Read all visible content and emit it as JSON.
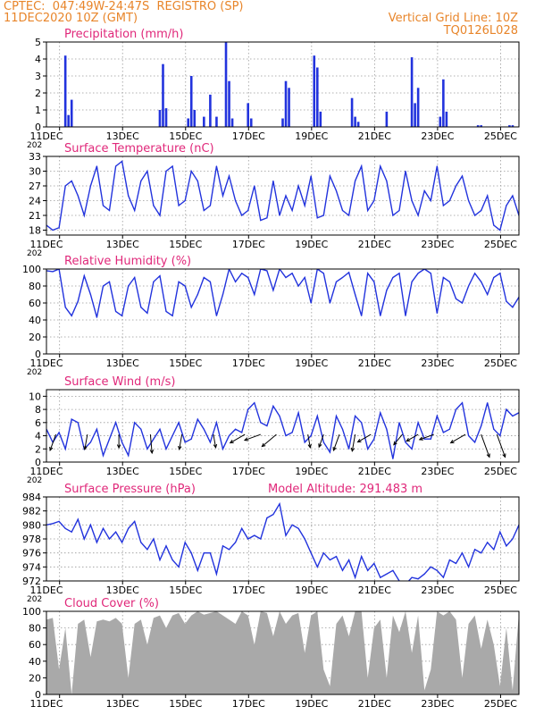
{
  "header": {
    "line1": "CPTEC:  047:49W-24:47S  REGISTRO (SP)",
    "line2": "11DEC2020 10Z (GMT)",
    "grid_note": "Vertical Grid Line: 10Z",
    "run_id": "TQ0126L028"
  },
  "colors": {
    "header": "#e8852a",
    "title": "#e0287a",
    "series": "#2233dd",
    "cloud": "#a9a9a9",
    "wind_arrow": "#000000"
  },
  "x_axis": {
    "unit": "day of December 2020",
    "domain": [
      11.0,
      26.0
    ],
    "tick_values": [
      11,
      13,
      15,
      17,
      19,
      21,
      23,
      25
    ],
    "tick_labels": [
      "11DEC",
      "13DEC",
      "15DEC",
      "17DEC",
      "19DEC",
      "21DEC",
      "23DEC",
      "25DEC"
    ],
    "fragment": "202"
  },
  "chart_data": [
    {
      "type": "bar",
      "title": "Precipitation (mm/h)",
      "ylim": [
        0,
        5
      ],
      "yticks": [
        0,
        1,
        2,
        3,
        4,
        5
      ],
      "x": [
        11.6,
        11.7,
        11.8,
        14.6,
        14.7,
        14.8,
        15.5,
        15.6,
        15.7,
        16.0,
        16.2,
        16.4,
        16.7,
        16.8,
        16.9,
        17.4,
        17.5,
        18.5,
        18.6,
        18.7,
        19.5,
        19.6,
        19.7,
        20.7,
        20.8,
        20.9,
        21.8,
        22.6,
        22.7,
        22.8,
        23.5,
        23.6,
        23.7,
        24.7,
        24.8,
        25.7,
        25.8
      ],
      "values": [
        4.2,
        0.7,
        1.6,
        1.0,
        3.7,
        1.1,
        0.5,
        3.0,
        1.0,
        0.6,
        1.9,
        0.6,
        5.0,
        2.7,
        0.5,
        1.4,
        0.5,
        0.5,
        2.7,
        2.3,
        4.2,
        3.5,
        0.9,
        1.7,
        0.6,
        0.3,
        0.9,
        4.1,
        1.4,
        2.3,
        0.6,
        2.8,
        0.9,
        0.1,
        0.1,
        0.1,
        0.1
      ]
    },
    {
      "type": "line",
      "title": "Surface Temperature (nC)",
      "ylim": [
        17,
        33
      ],
      "yticks": [
        18,
        21,
        24,
        27,
        30,
        33
      ],
      "x": [
        11.0,
        11.2,
        11.4,
        11.6,
        11.8,
        12.0,
        12.2,
        12.4,
        12.6,
        12.8,
        13.0,
        13.2,
        13.4,
        13.6,
        13.8,
        14.0,
        14.2,
        14.4,
        14.6,
        14.8,
        15.0,
        15.2,
        15.4,
        15.6,
        15.8,
        16.0,
        16.2,
        16.4,
        16.6,
        16.8,
        17.0,
        17.2,
        17.4,
        17.6,
        17.8,
        18.0,
        18.2,
        18.4,
        18.6,
        18.8,
        19.0,
        19.2,
        19.4,
        19.6,
        19.8,
        20.0,
        20.2,
        20.4,
        20.6,
        20.8,
        21.0,
        21.2,
        21.4,
        21.6,
        21.8,
        22.0,
        22.2,
        22.4,
        22.6,
        22.8,
        23.0,
        23.2,
        23.4,
        23.6,
        23.8,
        24.0,
        24.2,
        24.4,
        24.6,
        24.8,
        25.0,
        25.2,
        25.4,
        25.6,
        25.8,
        26.0
      ],
      "values": [
        19,
        18,
        18.5,
        27,
        28,
        25,
        21,
        27,
        31,
        23,
        22,
        31,
        32,
        25,
        22,
        28,
        30,
        23,
        21,
        30,
        31,
        23,
        24,
        30,
        28,
        22,
        23,
        31,
        25,
        29,
        24,
        21,
        22,
        27,
        20,
        20.5,
        28,
        21,
        25,
        22,
        27,
        23,
        29,
        20.5,
        21,
        29,
        26,
        22,
        21,
        28,
        31,
        22,
        24,
        31,
        28,
        21,
        22,
        30,
        24,
        21,
        26,
        24,
        31,
        23,
        24,
        27,
        29,
        24,
        21,
        22,
        25,
        19,
        18,
        23,
        25,
        21
      ]
    },
    {
      "type": "line",
      "title": "Relative Humidity (%)",
      "ylim": [
        0,
        100
      ],
      "yticks": [
        0,
        20,
        40,
        60,
        80,
        100
      ],
      "x": [
        11.0,
        11.2,
        11.4,
        11.6,
        11.8,
        12.0,
        12.2,
        12.4,
        12.6,
        12.8,
        13.0,
        13.2,
        13.4,
        13.6,
        13.8,
        14.0,
        14.2,
        14.4,
        14.6,
        14.8,
        15.0,
        15.2,
        15.4,
        15.6,
        15.8,
        16.0,
        16.2,
        16.4,
        16.6,
        16.8,
        17.0,
        17.2,
        17.4,
        17.6,
        17.8,
        18.0,
        18.2,
        18.4,
        18.6,
        18.8,
        19.0,
        19.2,
        19.4,
        19.6,
        19.8,
        20.0,
        20.2,
        20.4,
        20.6,
        20.8,
        21.0,
        21.2,
        21.4,
        21.6,
        21.8,
        22.0,
        22.2,
        22.4,
        22.6,
        22.8,
        23.0,
        23.2,
        23.4,
        23.6,
        23.8,
        24.0,
        24.2,
        24.4,
        24.6,
        24.8,
        25.0,
        25.2,
        25.4,
        25.6,
        25.8,
        26.0
      ],
      "values": [
        98,
        97,
        100,
        55,
        45,
        62,
        92,
        70,
        43,
        80,
        85,
        50,
        45,
        80,
        90,
        55,
        48,
        85,
        92,
        50,
        45,
        85,
        80,
        55,
        70,
        90,
        85,
        45,
        70,
        100,
        85,
        95,
        90,
        70,
        100,
        98,
        75,
        100,
        90,
        95,
        80,
        90,
        60,
        100,
        95,
        60,
        85,
        90,
        96,
        70,
        45,
        95,
        85,
        45,
        75,
        90,
        95,
        45,
        85,
        95,
        100,
        95,
        48,
        90,
        85,
        65,
        60,
        80,
        95,
        85,
        70,
        90,
        95,
        62,
        55,
        67
      ]
    },
    {
      "type": "line",
      "title": "Surface Wind (m/s)",
      "ylim": [
        0,
        11
      ],
      "yticks": [
        0,
        2,
        4,
        6,
        8,
        10
      ],
      "x": [
        11.0,
        11.2,
        11.4,
        11.6,
        11.8,
        12.0,
        12.2,
        12.4,
        12.6,
        12.8,
        13.0,
        13.2,
        13.4,
        13.6,
        13.8,
        14.0,
        14.2,
        14.4,
        14.6,
        14.8,
        15.0,
        15.2,
        15.4,
        15.6,
        15.8,
        16.0,
        16.2,
        16.4,
        16.6,
        16.8,
        17.0,
        17.2,
        17.4,
        17.6,
        17.8,
        18.0,
        18.2,
        18.4,
        18.6,
        18.8,
        19.0,
        19.2,
        19.4,
        19.6,
        19.8,
        20.0,
        20.2,
        20.4,
        20.6,
        20.8,
        21.0,
        21.2,
        21.4,
        21.6,
        21.8,
        22.0,
        22.2,
        22.4,
        22.6,
        22.8,
        23.0,
        23.2,
        23.4,
        23.6,
        23.8,
        24.0,
        24.2,
        24.4,
        24.6,
        24.8,
        25.0,
        25.2,
        25.4,
        25.6,
        25.8,
        26.0
      ],
      "values": [
        5,
        3,
        4.5,
        2,
        6.5,
        6,
        2,
        3,
        5,
        1,
        3.5,
        6,
        3,
        1,
        6,
        5,
        2,
        3.5,
        5,
        2,
        4,
        6,
        3,
        3.5,
        6.5,
        5,
        3,
        6,
        2,
        4,
        5,
        4.5,
        8,
        9,
        6,
        5.5,
        8.5,
        7,
        4,
        4.5,
        7.5,
        3,
        4,
        7,
        3,
        1.5,
        7,
        5,
        2,
        7,
        6,
        2,
        3.5,
        7.5,
        5,
        0.5,
        6,
        3,
        2,
        6,
        3.5,
        3.5,
        7,
        4.5,
        5,
        8,
        9,
        4,
        3,
        5.5,
        9,
        5,
        4,
        8,
        7,
        7.5
      ],
      "arrows": [
        {
          "x": 11.3,
          "speed": 3,
          "dir_deg": 200
        },
        {
          "x": 12.3,
          "speed": 2.5,
          "dir_deg": 190
        },
        {
          "x": 13.3,
          "speed": 2,
          "dir_deg": 180
        },
        {
          "x": 14.3,
          "speed": 3.5,
          "dir_deg": 175
        },
        {
          "x": 15.3,
          "speed": 2.5,
          "dir_deg": 190
        },
        {
          "x": 16.3,
          "speed": 2,
          "dir_deg": 170
        },
        {
          "x": 17.3,
          "speed": 3,
          "dir_deg": 240
        },
        {
          "x": 17.8,
          "speed": 3,
          "dir_deg": 250
        },
        {
          "x": 18.3,
          "speed": 3.5,
          "dir_deg": 230
        },
        {
          "x": 19.3,
          "speed": 2,
          "dir_deg": 170
        },
        {
          "x": 19.8,
          "speed": 2,
          "dir_deg": 200
        },
        {
          "x": 20.3,
          "speed": 3,
          "dir_deg": 200
        },
        {
          "x": 20.8,
          "speed": 3,
          "dir_deg": 190
        },
        {
          "x": 21.3,
          "speed": 2.5,
          "dir_deg": 240
        },
        {
          "x": 22.3,
          "speed": 2,
          "dir_deg": 220
        },
        {
          "x": 22.8,
          "speed": 2,
          "dir_deg": 240
        },
        {
          "x": 23.3,
          "speed": 2.5,
          "dir_deg": 250
        },
        {
          "x": 24.3,
          "speed": 3,
          "dir_deg": 240
        },
        {
          "x": 24.8,
          "speed": 5,
          "dir_deg": 160
        },
        {
          "x": 25.3,
          "speed": 5,
          "dir_deg": 160
        }
      ]
    },
    {
      "type": "line",
      "title": "Surface Pressure (hPa)",
      "annotation": "Model Altitude: 291.483  m",
      "ylim": [
        972,
        984
      ],
      "yticks": [
        972,
        974,
        976,
        978,
        980,
        982,
        984
      ],
      "x": [
        11.0,
        11.2,
        11.4,
        11.6,
        11.8,
        12.0,
        12.2,
        12.4,
        12.6,
        12.8,
        13.0,
        13.2,
        13.4,
        13.6,
        13.8,
        14.0,
        14.2,
        14.4,
        14.6,
        14.8,
        15.0,
        15.2,
        15.4,
        15.6,
        15.8,
        16.0,
        16.2,
        16.4,
        16.6,
        16.8,
        17.0,
        17.2,
        17.4,
        17.6,
        17.8,
        18.0,
        18.2,
        18.4,
        18.6,
        18.8,
        19.0,
        19.2,
        19.4,
        19.6,
        19.8,
        20.0,
        20.2,
        20.4,
        20.6,
        20.8,
        21.0,
        21.2,
        21.4,
        21.6,
        21.8,
        22.0,
        22.2,
        22.4,
        22.6,
        22.8,
        23.0,
        23.2,
        23.4,
        23.6,
        23.8,
        24.0,
        24.2,
        24.4,
        24.6,
        24.8,
        25.0,
        25.2,
        25.4,
        25.6,
        25.8,
        26.0
      ],
      "values": [
        980,
        980.2,
        980.5,
        979.5,
        979,
        980.8,
        978,
        980,
        977.5,
        979.5,
        978,
        979,
        977.5,
        979.5,
        980.5,
        977.5,
        976.5,
        978,
        975,
        977,
        975,
        974,
        977.5,
        976,
        973.5,
        976,
        976,
        973,
        977,
        976.5,
        977.5,
        979.5,
        978,
        978.5,
        978,
        981,
        981.5,
        983,
        978.5,
        980,
        979.5,
        978,
        976,
        974,
        976,
        975,
        975.5,
        973.5,
        975,
        972.5,
        975.5,
        973.5,
        974.5,
        972.5,
        973,
        973.5,
        972,
        971.5,
        972.5,
        972.3,
        973,
        974,
        973.5,
        972.5,
        975,
        974.5,
        976,
        974,
        976.5,
        976,
        977.5,
        976.5,
        979,
        977,
        978,
        980
      ]
    },
    {
      "type": "area",
      "title": "Cloud Cover (%)",
      "ylim": [
        0,
        100
      ],
      "yticks": [
        0,
        20,
        40,
        60,
        80,
        100
      ],
      "x": [
        11.0,
        11.2,
        11.4,
        11.6,
        11.8,
        12.0,
        12.2,
        12.4,
        12.6,
        12.8,
        13.0,
        13.2,
        13.4,
        13.6,
        13.8,
        14.0,
        14.2,
        14.4,
        14.6,
        14.8,
        15.0,
        15.2,
        15.4,
        15.6,
        15.8,
        16.0,
        16.2,
        16.4,
        16.6,
        16.8,
        17.0,
        17.2,
        17.4,
        17.6,
        17.8,
        18.0,
        18.2,
        18.4,
        18.6,
        18.8,
        19.0,
        19.2,
        19.4,
        19.6,
        19.8,
        20.0,
        20.2,
        20.4,
        20.6,
        20.8,
        21.0,
        21.2,
        21.4,
        21.6,
        21.8,
        22.0,
        22.2,
        22.4,
        22.6,
        22.8,
        23.0,
        23.2,
        23.4,
        23.6,
        23.8,
        24.0,
        24.2,
        24.4,
        24.6,
        24.8,
        25.0,
        25.2,
        25.4,
        25.6,
        25.8,
        26.0
      ],
      "values": [
        90,
        92,
        30,
        80,
        0,
        85,
        90,
        45,
        88,
        90,
        88,
        92,
        85,
        20,
        85,
        90,
        60,
        92,
        95,
        80,
        95,
        98,
        85,
        95,
        100,
        96,
        98,
        100,
        95,
        90,
        85,
        100,
        95,
        60,
        100,
        98,
        70,
        100,
        85,
        95,
        98,
        50,
        95,
        100,
        30,
        10,
        85,
        95,
        70,
        100,
        100,
        20,
        80,
        90,
        20,
        95,
        75,
        100,
        50,
        95,
        5,
        30,
        100,
        95,
        100,
        90,
        20,
        85,
        95,
        55,
        90,
        60,
        10,
        80,
        5,
        98
      ]
    }
  ]
}
